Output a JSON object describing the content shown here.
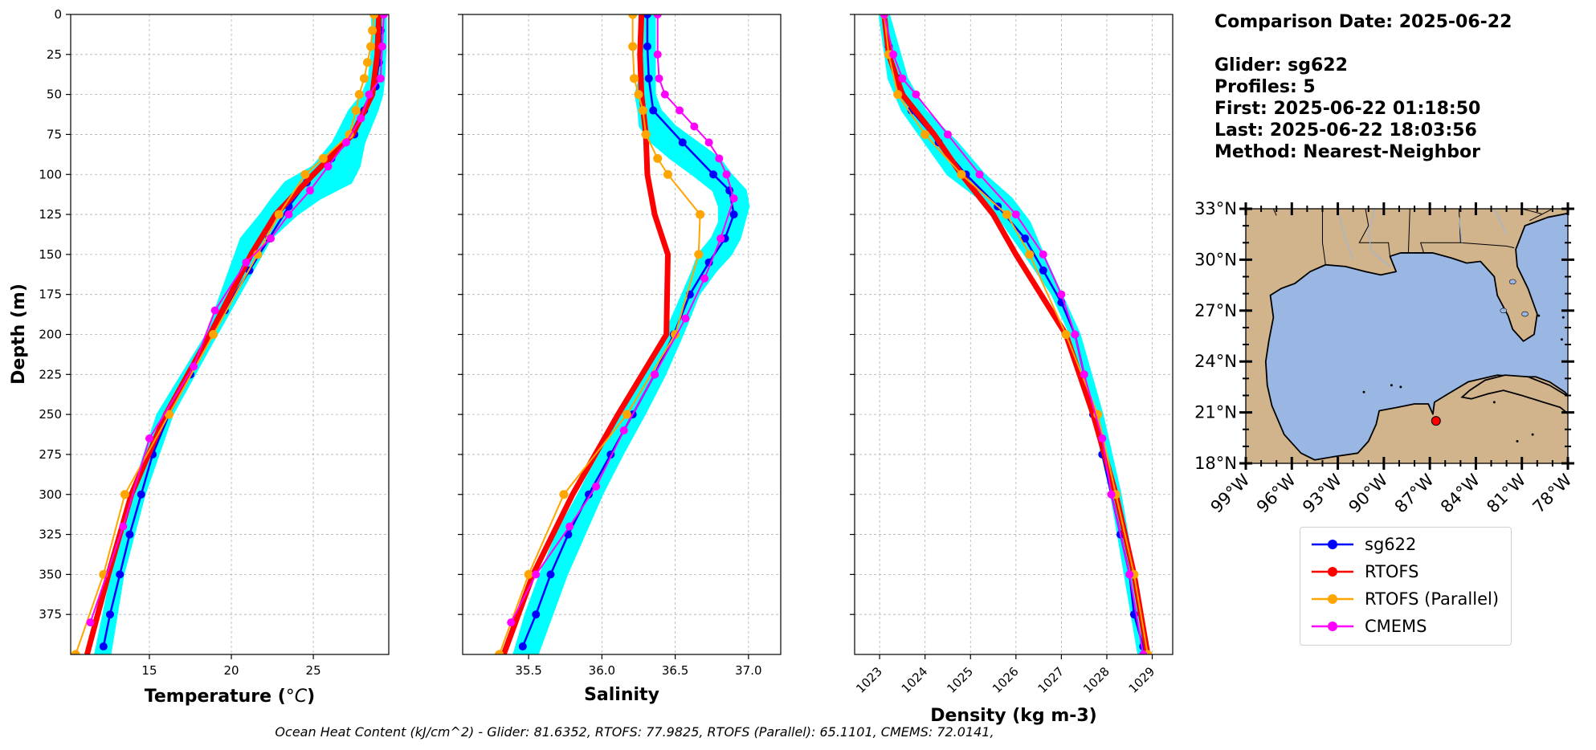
{
  "info": {
    "comparison_date": "Comparison Date: 2025-06-22",
    "glider": "Glider: sg622",
    "profiles": "Profiles: 5",
    "first": "First: 2025-06-22 01:18:50",
    "last": "Last: 2025-06-22 18:03:56",
    "method": "Method: Nearest-Neighbor"
  },
  "legend": [
    {
      "label": "sg622",
      "color": "#0000ff"
    },
    {
      "label": "RTOFS",
      "color": "#ff0000"
    },
    {
      "label": "RTOFS (Parallel)",
      "color": "#ffa500"
    },
    {
      "label": "CMEMS",
      "color": "#ff00ff"
    }
  ],
  "footer": "Ocean Heat Content (kJ/cm^2) - Glider: 81.6352,  RTOFS: 77.9825,  RTOFS (Parallel): 65.1101,  CMEMS: 72.0141,",
  "colors": {
    "glider_envelope": "#00ffff",
    "land": "#d2b48c",
    "ocean": "#99b7e2"
  },
  "chart_data": [
    {
      "type": "line",
      "xlabel": "Temperature (°C)",
      "ylabel": "Depth (m)",
      "xlim": [
        10.2,
        29.6
      ],
      "ylim": [
        400,
        0
      ],
      "x_ticks": [
        15,
        20,
        25
      ],
      "y_ticks": [
        0,
        25,
        50,
        75,
        100,
        125,
        150,
        175,
        200,
        225,
        250,
        275,
        300,
        325,
        350,
        375
      ],
      "grid": true,
      "envelope": {
        "depth": [
          0,
          20,
          40,
          50,
          60,
          80,
          95,
          105,
          115,
          125,
          140,
          160,
          200,
          250,
          300,
          350,
          400
        ],
        "min": [
          28.6,
          28.6,
          28.4,
          28.0,
          27.2,
          26.2,
          25.0,
          23.3,
          22.5,
          21.8,
          20.6,
          19.9,
          18.5,
          15.5,
          13.9,
          12.7,
          11.7
        ],
        "max": [
          29.4,
          29.4,
          29.3,
          29.2,
          28.9,
          28.1,
          27.8,
          27.3,
          25.4,
          24.0,
          22.4,
          21.3,
          19.1,
          16.4,
          14.7,
          13.4,
          12.6
        ]
      },
      "series": [
        {
          "name": "sg622",
          "depth": [
            0,
            10,
            20,
            30,
            45,
            60,
            75,
            90,
            105,
            120,
            140,
            160,
            185,
            200,
            225,
            250,
            275,
            300,
            325,
            350,
            375,
            395
          ],
          "values": [
            29.1,
            29.1,
            29.1,
            29.0,
            28.8,
            28.1,
            27.5,
            26.1,
            24.6,
            23.5,
            22.3,
            21.1,
            19.6,
            18.8,
            17.5,
            16.2,
            15.2,
            14.5,
            13.8,
            13.2,
            12.6,
            12.2
          ]
        },
        {
          "name": "RTOFS",
          "depth": [
            0,
            25,
            50,
            75,
            100,
            125,
            150,
            200,
            250,
            300,
            350,
            400
          ],
          "values": [
            29.0,
            28.9,
            28.6,
            27.4,
            25.0,
            22.7,
            21.2,
            18.7,
            16.0,
            13.9,
            12.5,
            11.2
          ]
        },
        {
          "name": "RTOFS (Parallel)",
          "depth": [
            0,
            10,
            20,
            30,
            40,
            50,
            60,
            75,
            90,
            100,
            125,
            150,
            200,
            250,
            300,
            350,
            400
          ],
          "values": [
            28.7,
            28.6,
            28.5,
            28.3,
            28.1,
            27.8,
            27.6,
            27.2,
            25.6,
            24.5,
            22.9,
            21.6,
            18.9,
            16.2,
            13.5,
            12.2,
            10.5
          ]
        },
        {
          "name": "CMEMS",
          "depth": [
            0,
            20,
            40,
            50,
            65,
            80,
            95,
            110,
            125,
            140,
            155,
            185,
            220,
            265,
            320,
            380
          ],
          "values": [
            29.3,
            29.2,
            29.1,
            28.4,
            27.9,
            27.0,
            25.9,
            24.8,
            23.5,
            22.4,
            20.9,
            19.0,
            17.7,
            15.0,
            13.4,
            11.4
          ]
        }
      ]
    },
    {
      "type": "line",
      "xlabel": "Salinity",
      "xlim": [
        35.05,
        37.22
      ],
      "ylim": [
        400,
        0
      ],
      "x_ticks": [
        35.5,
        36.0,
        36.5,
        37.0
      ],
      "grid": true,
      "envelope": {
        "depth": [
          0,
          40,
          50,
          60,
          70,
          80,
          90,
          100,
          110,
          120,
          130,
          140,
          150,
          160,
          175,
          200,
          225,
          250,
          275,
          300,
          325,
          350,
          375,
          400
        ],
        "min": [
          36.27,
          36.26,
          36.23,
          36.25,
          36.26,
          36.34,
          36.47,
          36.62,
          36.76,
          36.8,
          36.8,
          36.75,
          36.66,
          36.62,
          36.55,
          36.43,
          36.3,
          36.14,
          35.98,
          35.84,
          35.69,
          35.58,
          35.48,
          35.4
        ],
        "max": [
          36.36,
          36.36,
          36.36,
          36.4,
          36.5,
          36.65,
          36.8,
          36.88,
          36.98,
          37.0,
          36.97,
          36.94,
          36.88,
          36.78,
          36.66,
          36.55,
          36.43,
          36.29,
          36.14,
          36.0,
          35.88,
          35.76,
          35.66,
          35.56
        ]
      },
      "series": [
        {
          "name": "sg622",
          "depth": [
            0,
            20,
            40,
            60,
            80,
            100,
            110,
            125,
            140,
            155,
            175,
            200,
            225,
            250,
            275,
            300,
            325,
            350,
            375,
            395
          ],
          "values": [
            36.31,
            36.31,
            36.32,
            36.35,
            36.55,
            36.76,
            36.87,
            36.9,
            36.84,
            36.73,
            36.6,
            36.49,
            36.36,
            36.21,
            36.06,
            35.91,
            35.77,
            35.65,
            35.55,
            35.46
          ]
        },
        {
          "name": "RTOFS",
          "depth": [
            0,
            25,
            50,
            75,
            100,
            125,
            150,
            200,
            250,
            300,
            350,
            400
          ],
          "values": [
            36.27,
            36.26,
            36.27,
            36.3,
            36.31,
            36.36,
            36.45,
            36.44,
            36.11,
            35.8,
            35.53,
            35.33
          ]
        },
        {
          "name": "RTOFS (Parallel)",
          "depth": [
            0,
            20,
            40,
            50,
            60,
            75,
            90,
            100,
            125,
            150,
            200,
            250,
            300,
            350,
            400
          ],
          "values": [
            36.21,
            36.21,
            36.22,
            36.25,
            36.28,
            36.3,
            36.38,
            36.45,
            36.67,
            36.66,
            36.5,
            36.17,
            35.74,
            35.5,
            35.3
          ]
        },
        {
          "name": "CMEMS",
          "depth": [
            0,
            25,
            40,
            50,
            60,
            70,
            80,
            90,
            100,
            115,
            140,
            165,
            190,
            225,
            260,
            295,
            320,
            350,
            380
          ],
          "values": [
            36.38,
            36.38,
            36.39,
            36.43,
            36.53,
            36.63,
            36.73,
            36.8,
            36.85,
            36.9,
            36.81,
            36.7,
            36.57,
            36.36,
            36.15,
            35.96,
            35.78,
            35.55,
            35.38
          ]
        }
      ]
    },
    {
      "type": "line",
      "xlabel": "Density (kg m-3)",
      "xlim": [
        1022.45,
        1029.45
      ],
      "ylim": [
        400,
        0
      ],
      "x_ticks": [
        1023,
        1024,
        1025,
        1026,
        1027,
        1028,
        1029
      ],
      "grid": true,
      "envelope": {
        "depth": [
          0,
          20,
          40,
          60,
          80,
          100,
          115,
          130,
          150,
          175,
          200,
          250,
          300,
          350,
          400
        ],
        "min": [
          1023.0,
          1023.1,
          1023.2,
          1023.5,
          1024.0,
          1024.5,
          1025.2,
          1025.7,
          1026.2,
          1026.8,
          1027.2,
          1027.7,
          1028.1,
          1028.4,
          1028.7
        ],
        "max": [
          1023.2,
          1023.4,
          1023.6,
          1024.0,
          1024.7,
          1025.3,
          1025.9,
          1026.3,
          1026.6,
          1027.0,
          1027.4,
          1027.9,
          1028.3,
          1028.6,
          1028.9
        ]
      },
      "series": [
        {
          "name": "sg622",
          "depth": [
            0,
            20,
            40,
            60,
            80,
            100,
            120,
            140,
            160,
            180,
            200,
            225,
            250,
            275,
            300,
            325,
            350,
            375,
            395
          ],
          "values": [
            1023.1,
            1023.2,
            1023.4,
            1023.7,
            1024.3,
            1024.9,
            1025.6,
            1026.2,
            1026.6,
            1027.0,
            1027.3,
            1027.5,
            1027.7,
            1027.9,
            1028.1,
            1028.3,
            1028.5,
            1028.6,
            1028.8
          ]
        },
        {
          "name": "RTOFS",
          "depth": [
            0,
            25,
            50,
            75,
            100,
            125,
            150,
            200,
            250,
            300,
            350,
            400
          ],
          "values": [
            1023.1,
            1023.2,
            1023.5,
            1024.2,
            1024.8,
            1025.5,
            1026.0,
            1027.1,
            1027.7,
            1028.2,
            1028.6,
            1028.9
          ]
        },
        {
          "name": "RTOFS (Parallel)",
          "depth": [
            0,
            25,
            50,
            75,
            100,
            125,
            150,
            200,
            250,
            300,
            350,
            400
          ],
          "values": [
            1023.1,
            1023.2,
            1023.4,
            1024.0,
            1024.8,
            1025.8,
            1026.3,
            1027.1,
            1027.8,
            1028.2,
            1028.6,
            1028.9
          ]
        },
        {
          "name": "CMEMS",
          "depth": [
            0,
            25,
            40,
            50,
            75,
            100,
            125,
            150,
            175,
            200,
            225,
            265,
            300,
            350,
            400
          ],
          "values": [
            1023.1,
            1023.3,
            1023.5,
            1023.8,
            1024.5,
            1025.2,
            1026.0,
            1026.6,
            1027.0,
            1027.3,
            1027.5,
            1027.9,
            1028.1,
            1028.5,
            1028.8
          ]
        }
      ]
    }
  ],
  "map": {
    "lat_ticks": [
      "33°N",
      "30°N",
      "27°N",
      "24°N",
      "21°N",
      "18°N"
    ],
    "lon_ticks": [
      "99°W",
      "96°W",
      "93°W",
      "90°W",
      "87°W",
      "84°W",
      "81°W",
      "78°W"
    ],
    "lat_range": [
      18,
      33
    ],
    "lon_range": [
      -99,
      -78
    ],
    "glider_position": {
      "lon": -86.6,
      "lat": 20.5
    }
  }
}
